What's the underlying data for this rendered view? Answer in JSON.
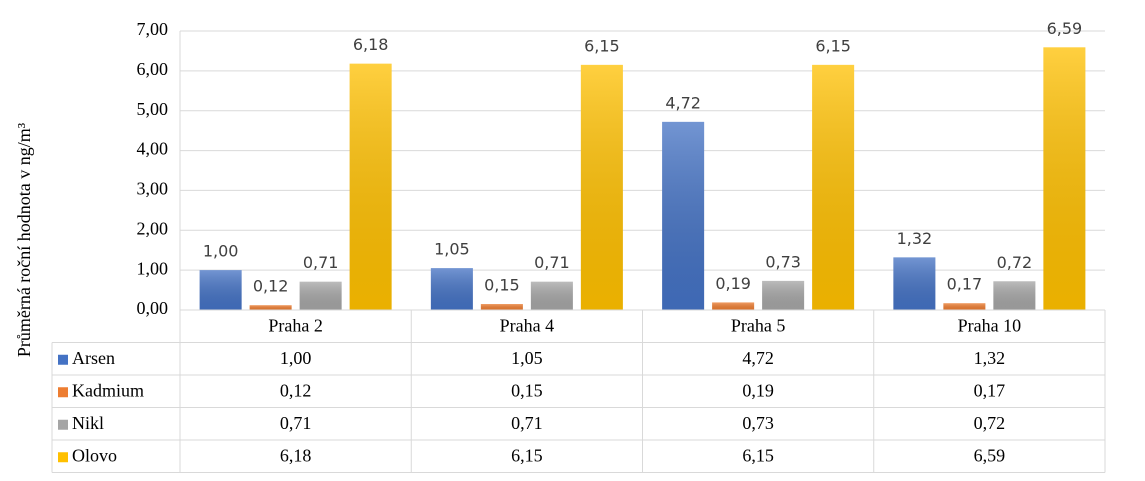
{
  "chart_data": {
    "type": "bar",
    "y_label": "Průměrná roční hodnota v ng/m³",
    "categories": [
      "Praha 2",
      "Praha 4",
      "Praha 5",
      "Praha 10"
    ],
    "series": [
      {
        "name": "Arsen",
        "color": "#4472c4",
        "values": [
          1.0,
          1.05,
          4.72,
          1.32
        ],
        "value_labels": [
          "1,00",
          "1,05",
          "4,72",
          "1,32"
        ]
      },
      {
        "name": "Kadmium",
        "color": "#ed7d31",
        "values": [
          0.12,
          0.15,
          0.19,
          0.17
        ],
        "value_labels": [
          "0,12",
          "0,15",
          "0,19",
          "0,17"
        ]
      },
      {
        "name": "Nikl",
        "color": "#a5a5a5",
        "values": [
          0.71,
          0.71,
          0.73,
          0.72
        ],
        "value_labels": [
          "0,71",
          "0,71",
          "0,73",
          "0,72"
        ]
      },
      {
        "name": "Olovo",
        "color": "#ffc000",
        "values": [
          6.18,
          6.15,
          6.15,
          6.59
        ],
        "value_labels": [
          "6,18",
          "6,15",
          "6,15",
          "6,59"
        ]
      }
    ],
    "ylim": [
      0,
      7
    ],
    "yticks": [
      {
        "value": 0,
        "label": "0,00"
      },
      {
        "value": 1,
        "label": "1,00"
      },
      {
        "value": 2,
        "label": "2,00"
      },
      {
        "value": 3,
        "label": "3,00"
      },
      {
        "value": 4,
        "label": "4,00"
      },
      {
        "value": 5,
        "label": "5,00"
      },
      {
        "value": 6,
        "label": "6,00"
      },
      {
        "value": 7,
        "label": "7,00"
      }
    ],
    "grid": true,
    "data_table": true
  }
}
